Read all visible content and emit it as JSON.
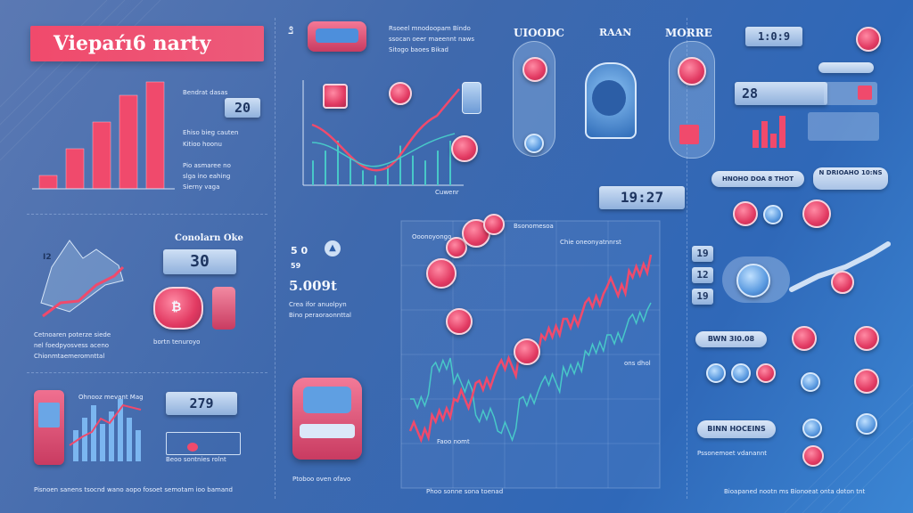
{
  "title": "Viepaŕı6 narty",
  "colors": {
    "accent": "#f04a6c",
    "panel": "#a9c3e6",
    "line_teal": "#48c8c8",
    "bg": "#3f69ad"
  },
  "top_left_bars": {
    "values": [
      1,
      3,
      5,
      7,
      8
    ],
    "label": "20",
    "texts": [
      "Bendrat dasas",
      "Ehiso bieg cauten",
      "Kitioo hoonu",
      "Pio asmaree no",
      "slga ino eahing",
      "Sierny vaga"
    ]
  },
  "left_middle": {
    "heading": "Conolarn Oke",
    "value": "30",
    "texts": [
      "Cetnoaren poterze siede",
      "nel foedpyosvess aceno",
      "Chionmtaemeromnttal"
    ],
    "badge": "I2"
  },
  "left_bottom": {
    "value": "279",
    "bar_values": [
      5,
      7,
      9,
      6,
      8,
      10,
      7,
      5
    ],
    "texts": [
      "Ohnooz mevant Mag",
      "Beoo sontnies rolnt"
    ]
  },
  "center_stats": {
    "values": [
      "5.0",
      "5.009t"
    ],
    "small": [
      "5 0",
      "59"
    ],
    "texts": [
      "Crea ifor anuolpyn",
      "Bino peraoraonnttal",
      "bortn tenuroyo"
    ]
  },
  "center_top_text": [
    "Rsoeel mnodoopam Bindo",
    "ssocan oeer maeennt naws",
    "Sitogo baoes Bikad"
  ],
  "center_top_chart": {
    "values": [
      5,
      7,
      9,
      6,
      3,
      2,
      4,
      8,
      6,
      5,
      7,
      9
    ]
  },
  "center_tag": "Cuwenr",
  "mid_headers": [
    "UIOODC",
    "RAAN",
    "MORRE"
  ],
  "clock": "19:27",
  "right_top_value": "1:0:9",
  "right_value": "28",
  "right_headers": [
    "HNOHO DOA 8 THOT",
    "N DRIOAHO 10:NS"
  ],
  "right_values": [
    "19",
    "12",
    "19"
  ],
  "right_pills": [
    "BWN 3I0.08",
    "BINN HOCEINS"
  ],
  "main_chart": {
    "type": "line",
    "series": [
      {
        "name": "teal",
        "values": [
          5,
          7,
          6,
          4,
          3,
          5,
          6,
          7,
          8,
          9,
          10,
          11
        ]
      },
      {
        "name": "red",
        "values": [
          3,
          4,
          5,
          6,
          7,
          8,
          9,
          10,
          11,
          12,
          13,
          14
        ]
      }
    ],
    "labels": [
      "Bsonomesoa",
      "Chie oneonyatnnrst",
      "Ooonoyongo",
      "ons dhol",
      "Faoo nomt"
    ]
  },
  "bottom_text": [
    "Pisnoen sanens tsocnd wano aopo fosoet semotam ioo bamand",
    "Phoo sonne sona toenad",
    "Bioapaned nootn ms Bionoeat onta doton tnt"
  ],
  "bottom_center_text": "Ptoboo oven ofavo",
  "right_bottom_text": "Pssonemoet vdanannt"
}
